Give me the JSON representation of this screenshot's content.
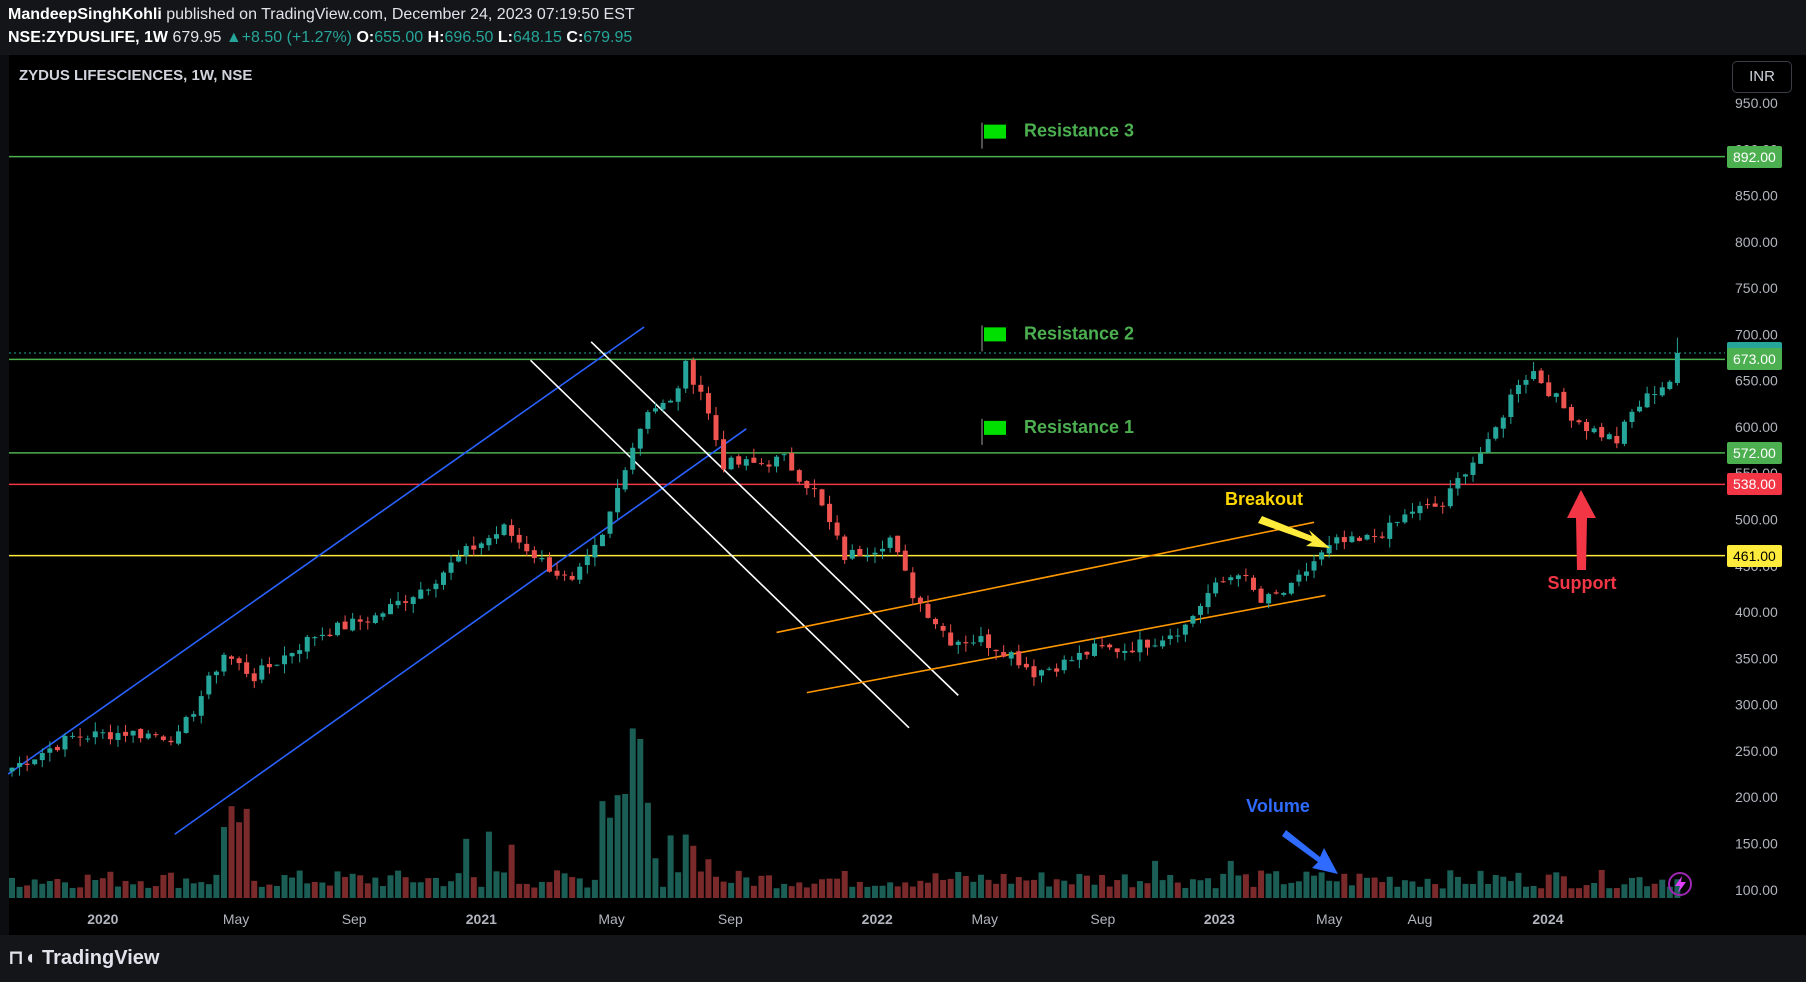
{
  "header": {
    "author": "MandeepSinghKohli",
    "published_text": " published on TradingView.com, December 24, 2023 07:19:50 EST",
    "symbol": "NSE:ZYDUSLIFE, 1W",
    "last": "679.95",
    "change": "+8.50 (+1.27%)",
    "o": "655.00",
    "h": "696.50",
    "l": "648.15",
    "c": "679.95"
  },
  "chart_title": "ZYDUS LIFESCIENCES, 1W, NSE",
  "currency_button": "INR",
  "footer": {
    "brand": "TradingView"
  },
  "colors": {
    "up": "#26a69a",
    "down": "#ef5350",
    "green_line": "#4caf50",
    "red_line": "#f23645",
    "yellow_line": "#ffeb3b",
    "blue_channel": "#2962ff",
    "white_channel": "#ffffff",
    "orange_channel": "#ff9800"
  },
  "chart_data": {
    "type": "candlestick",
    "title": "ZYDUS LIFESCIENCES, 1W, NSE",
    "ylim": [
      95,
      975
    ],
    "y_ticks": [
      "950.00",
      "900.00",
      "850.00",
      "800.00",
      "750.00",
      "700.00",
      "650.00",
      "600.00",
      "550.00",
      "500.00",
      "450.00",
      "400.00",
      "350.00",
      "300.00",
      "250.00",
      "200.00",
      "150.00",
      "100.00"
    ],
    "x_ticks": [
      "2020",
      "May",
      "Sep",
      "2021",
      "May",
      "Sep",
      "2022",
      "May",
      "Sep",
      "2023",
      "May",
      "Aug",
      "2024"
    ],
    "horizontal_levels": [
      {
        "value": 892,
        "label": "892.00",
        "color": "green"
      },
      {
        "value": 679.95,
        "label": "679.95",
        "color": "teal"
      },
      {
        "value": 673,
        "label": "673.00",
        "color": "green"
      },
      {
        "value": 572,
        "label": "572.00",
        "color": "green"
      },
      {
        "value": 538,
        "label": "538.00",
        "color": "red"
      },
      {
        "value": 461,
        "label": "461.00",
        "color": "yellow"
      }
    ],
    "annotations": [
      {
        "text": "Resistance 3",
        "value": 892
      },
      {
        "text": "Resistance 2",
        "value": 673
      },
      {
        "text": "Resistance 1",
        "value": 572
      },
      {
        "text": "Breakout"
      },
      {
        "text": "Support"
      },
      {
        "text": "Volume"
      }
    ],
    "weekly_close_path": [
      {
        "w": 0,
        "p": 232
      },
      {
        "w": 8,
        "p": 265
      },
      {
        "w": 15,
        "p": 270
      },
      {
        "w": 22,
        "p": 265
      },
      {
        "w": 28,
        "p": 355
      },
      {
        "w": 32,
        "p": 330
      },
      {
        "w": 40,
        "p": 375
      },
      {
        "w": 48,
        "p": 395
      },
      {
        "w": 55,
        "p": 430
      },
      {
        "w": 60,
        "p": 465
      },
      {
        "w": 65,
        "p": 490
      },
      {
        "w": 70,
        "p": 455
      },
      {
        "w": 74,
        "p": 430
      },
      {
        "w": 78,
        "p": 480
      },
      {
        "w": 81,
        "p": 560
      },
      {
        "w": 84,
        "p": 620
      },
      {
        "w": 87,
        "p": 625
      },
      {
        "w": 89,
        "p": 665
      },
      {
        "w": 91,
        "p": 640
      },
      {
        "w": 94,
        "p": 560
      },
      {
        "w": 98,
        "p": 560
      },
      {
        "w": 102,
        "p": 565
      },
      {
        "w": 106,
        "p": 530
      },
      {
        "w": 110,
        "p": 460
      },
      {
        "w": 114,
        "p": 470
      },
      {
        "w": 116,
        "p": 480
      },
      {
        "w": 119,
        "p": 420
      },
      {
        "w": 124,
        "p": 370
      },
      {
        "w": 128,
        "p": 370
      },
      {
        "w": 132,
        "p": 355
      },
      {
        "w": 135,
        "p": 335
      },
      {
        "w": 139,
        "p": 345
      },
      {
        "w": 143,
        "p": 360
      },
      {
        "w": 147,
        "p": 360
      },
      {
        "w": 151,
        "p": 370
      },
      {
        "w": 155,
        "p": 385
      },
      {
        "w": 158,
        "p": 420
      },
      {
        "w": 162,
        "p": 445
      },
      {
        "w": 165,
        "p": 410
      },
      {
        "w": 169,
        "p": 425
      },
      {
        "w": 172,
        "p": 455
      },
      {
        "w": 175,
        "p": 475
      },
      {
        "w": 178,
        "p": 475
      },
      {
        "w": 182,
        "p": 490
      },
      {
        "w": 185,
        "p": 510
      },
      {
        "w": 189,
        "p": 515
      },
      {
        "w": 192,
        "p": 555
      },
      {
        "w": 195,
        "p": 580
      },
      {
        "w": 199,
        "p": 650
      },
      {
        "w": 201,
        "p": 660
      },
      {
        "w": 205,
        "p": 620
      },
      {
        "w": 208,
        "p": 600
      },
      {
        "w": 212,
        "p": 585
      },
      {
        "w": 214,
        "p": 615
      },
      {
        "w": 217,
        "p": 640
      },
      {
        "w": 219,
        "p": 650
      },
      {
        "w": 220,
        "p": 680
      }
    ]
  }
}
